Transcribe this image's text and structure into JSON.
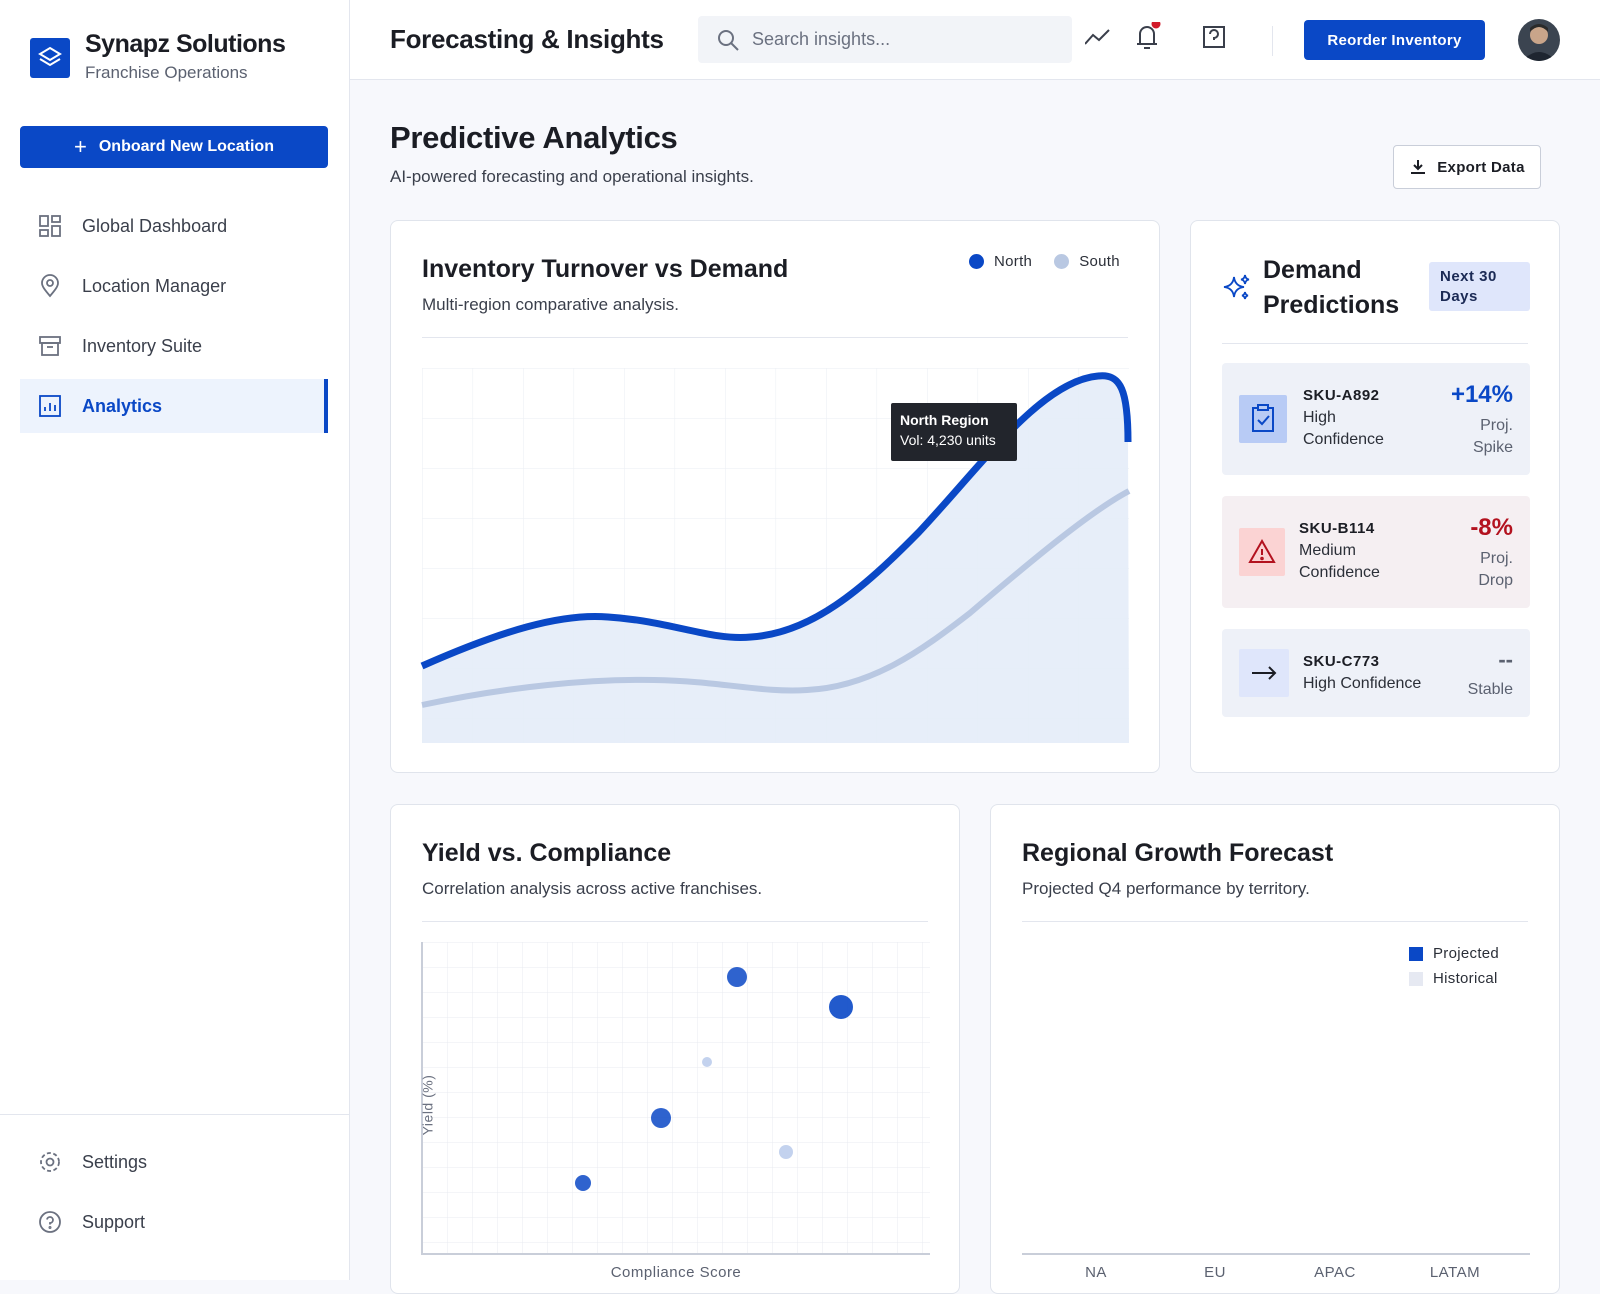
{
  "sidebar": {
    "brand": {
      "name": "Synapz Solutions",
      "subtitle": "Franchise Operations"
    },
    "primary_action": "Onboard New Location",
    "nav": [
      "Global Dashboard",
      "Location Manager",
      "Inventory Suite",
      "Analytics"
    ],
    "footer_nav": [
      "Settings",
      "Support"
    ]
  },
  "header": {
    "title": "Forecasting & Insights",
    "search_placeholder": "Search insights...",
    "action": "Reorder Inventory"
  },
  "page": {
    "title": "Predictive Analytics",
    "subtitle": "AI-powered forecasting and operational insights.",
    "export": "Export Data"
  },
  "turnover": {
    "title": "Inventory Turnover vs Demand",
    "subtitle": "Multi-region comparative analysis.",
    "legend": [
      "North",
      "South"
    ],
    "tooltip": {
      "title": "North Region",
      "text": "Vol: 4,230 units"
    }
  },
  "predictions": {
    "title": "Demand Predictions",
    "badge": "Next 30 Days",
    "items": [
      {
        "sku": "SKU-A892",
        "confidence": "High Confidence",
        "change": "+14%",
        "note": "Proj. Spike"
      },
      {
        "sku": "SKU-B114",
        "confidence": "Medium Confidence",
        "change": "-8%",
        "note": "Proj. Drop"
      },
      {
        "sku": "SKU-C773",
        "confidence": "High Confidence",
        "change": "--",
        "note": "Stable"
      }
    ]
  },
  "yield": {
    "title": "Yield vs. Compliance",
    "subtitle": "Correlation analysis across active franchises.",
    "x_label": "Compliance Score",
    "y_label": "Yield (%)"
  },
  "growth": {
    "title": "Regional Growth Forecast",
    "subtitle": "Projected Q4 performance by territory.",
    "legend": [
      "Projected",
      "Historical"
    ],
    "categories": [
      "NA",
      "EU",
      "APAC",
      "LATAM"
    ]
  }
}
